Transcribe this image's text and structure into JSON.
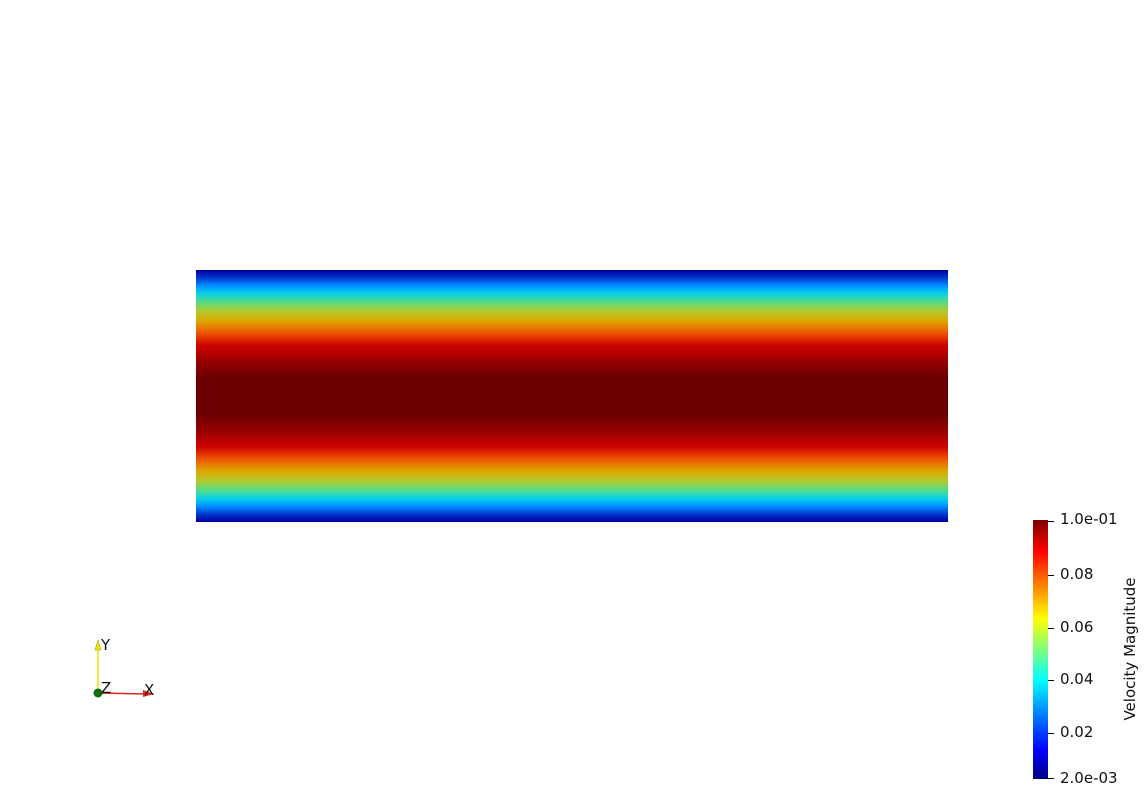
{
  "colorbar": {
    "title": "Velocity Magnitude",
    "ticks": [
      "1.0e-01",
      "0.08",
      "0.06",
      "0.04",
      "0.02",
      "2.0e-03"
    ],
    "range": [
      0.002,
      0.1
    ],
    "colormap": "jet"
  },
  "orientation_axes": {
    "x_label": "X",
    "y_label": "Y",
    "z_label": "Z",
    "x_color": "#e0261e",
    "y_color": "#e6e600",
    "z_color": "#0b6b12"
  },
  "field": {
    "quantity": "Velocity Magnitude",
    "profile": "parabolic, maximum at channel center, minimum at top and bottom walls"
  }
}
